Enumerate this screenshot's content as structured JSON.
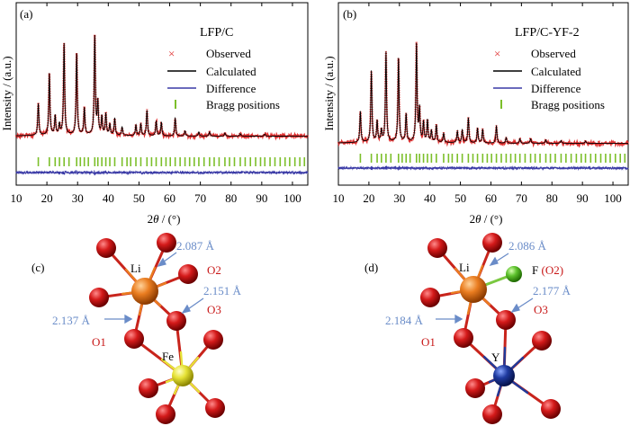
{
  "chart_data": [
    {
      "type": "line",
      "panel_label": "(a)",
      "title": "LFP/C",
      "xlabel_prefix": "2",
      "xlabel_theta": "θ",
      "xlabel_suffix": " / (°)",
      "ylabel": "Intensity / (a.u.)",
      "xlim": [
        10,
        105
      ],
      "xticks": [
        10,
        20,
        30,
        40,
        50,
        60,
        70,
        80,
        90,
        100
      ],
      "y_units": "arbitrary (normalized, background = 0)",
      "legend": [
        "Observed",
        "Calculated",
        "Difference",
        "Bragg positions"
      ],
      "peaks": [
        {
          "x": 17.2,
          "h": 0.3
        },
        {
          "x": 20.8,
          "h": 0.58
        },
        {
          "x": 22.7,
          "h": 0.18
        },
        {
          "x": 24.1,
          "h": 0.1
        },
        {
          "x": 25.6,
          "h": 0.86
        },
        {
          "x": 29.7,
          "h": 0.77
        },
        {
          "x": 32.2,
          "h": 0.25
        },
        {
          "x": 35.6,
          "h": 0.93
        },
        {
          "x": 36.6,
          "h": 0.3
        },
        {
          "x": 37.9,
          "h": 0.17
        },
        {
          "x": 39.2,
          "h": 0.2
        },
        {
          "x": 40.5,
          "h": 0.1
        },
        {
          "x": 42.1,
          "h": 0.16
        },
        {
          "x": 44.5,
          "h": 0.08
        },
        {
          "x": 49.0,
          "h": 0.1
        },
        {
          "x": 50.6,
          "h": 0.11
        },
        {
          "x": 52.6,
          "h": 0.24
        },
        {
          "x": 55.6,
          "h": 0.14
        },
        {
          "x": 57.3,
          "h": 0.13
        },
        {
          "x": 61.8,
          "h": 0.17
        },
        {
          "x": 65.0,
          "h": 0.05
        },
        {
          "x": 69.5,
          "h": 0.04
        },
        {
          "x": 73.0,
          "h": 0.04
        },
        {
          "x": 78.0,
          "h": 0.03
        },
        {
          "x": 83.0,
          "h": 0.025
        },
        {
          "x": 91.0,
          "h": 0.02
        }
      ],
      "bragg_positions": [
        17.2,
        20.8,
        22.7,
        24.1,
        25.6,
        27.2,
        29.7,
        30.9,
        32.2,
        33.5,
        35.6,
        36.6,
        37.9,
        39.2,
        40.5,
        42.1,
        44.5,
        46.1,
        47.3,
        49.0,
        50.6,
        52.6,
        54.1,
        55.6,
        57.3,
        58.8,
        60.2,
        61.8,
        63.4,
        65.0,
        66.5,
        68.0,
        69.5,
        71.2,
        73.0,
        74.5,
        76.1,
        78.0,
        79.5,
        81.1,
        83.0,
        84.6,
        86.3,
        88.0,
        89.6,
        91.0,
        92.7,
        94.3,
        96.0,
        97.6,
        99.1,
        100.8,
        102.4,
        103.9
      ]
    },
    {
      "type": "line",
      "panel_label": "(b)",
      "title": "LFP/C-YF-2",
      "xlabel_prefix": "2",
      "xlabel_theta": "θ",
      "xlabel_suffix": " / (°)",
      "ylabel": "Intensity / (a.u.)",
      "xlim": [
        10,
        105
      ],
      "xticks": [
        10,
        20,
        30,
        40,
        50,
        60,
        70,
        80,
        90,
        100
      ],
      "y_units": "arbitrary (normalized, background = 0)",
      "legend": [
        "Observed",
        "Calculated",
        "Difference",
        "Bragg positions"
      ],
      "peaks": [
        {
          "x": 17.2,
          "h": 0.27
        },
        {
          "x": 20.8,
          "h": 0.62
        },
        {
          "x": 22.7,
          "h": 0.18
        },
        {
          "x": 24.1,
          "h": 0.1
        },
        {
          "x": 25.6,
          "h": 0.78
        },
        {
          "x": 29.7,
          "h": 0.73
        },
        {
          "x": 32.2,
          "h": 0.24
        },
        {
          "x": 35.6,
          "h": 0.85
        },
        {
          "x": 36.6,
          "h": 0.28
        },
        {
          "x": 37.9,
          "h": 0.17
        },
        {
          "x": 39.2,
          "h": 0.19
        },
        {
          "x": 40.5,
          "h": 0.1
        },
        {
          "x": 42.1,
          "h": 0.15
        },
        {
          "x": 44.5,
          "h": 0.08
        },
        {
          "x": 49.0,
          "h": 0.1
        },
        {
          "x": 50.6,
          "h": 0.11
        },
        {
          "x": 52.6,
          "h": 0.22
        },
        {
          "x": 55.6,
          "h": 0.13
        },
        {
          "x": 57.3,
          "h": 0.12
        },
        {
          "x": 61.8,
          "h": 0.15
        },
        {
          "x": 65.0,
          "h": 0.05
        },
        {
          "x": 69.5,
          "h": 0.04
        },
        {
          "x": 73.0,
          "h": 0.04
        },
        {
          "x": 78.0,
          "h": 0.03
        },
        {
          "x": 83.0,
          "h": 0.025
        },
        {
          "x": 91.0,
          "h": 0.02
        }
      ],
      "bragg_positions": [
        17.2,
        20.8,
        22.7,
        24.1,
        25.6,
        27.2,
        29.7,
        30.9,
        32.2,
        33.5,
        35.6,
        36.6,
        37.9,
        39.2,
        40.5,
        42.1,
        44.5,
        46.1,
        47.3,
        49.0,
        50.6,
        52.6,
        54.1,
        55.6,
        57.3,
        58.8,
        60.2,
        61.8,
        63.4,
        65.0,
        66.5,
        68.0,
        69.5,
        71.2,
        73.0,
        74.5,
        76.1,
        78.0,
        79.5,
        81.1,
        83.0,
        84.6,
        86.3,
        88.0,
        89.6,
        91.0,
        92.7,
        94.3,
        96.0,
        97.6,
        99.1,
        100.8,
        102.4,
        103.9
      ]
    }
  ],
  "structures": {
    "c": {
      "panel_label": "(c)",
      "atoms": {
        "li": "Li",
        "fe": "Fe",
        "o1": "O1",
        "o2": "O2",
        "o3": "O3"
      },
      "bonds": {
        "d1": "2.087 Å",
        "d2": "2.151 Å",
        "d3": "2.137 Å"
      }
    },
    "d": {
      "panel_label": "(d)",
      "atoms": {
        "li": "Li",
        "y": "Y",
        "o1": "O1",
        "o3": "O3",
        "f": "F",
        "f_site": "(O2)"
      },
      "bonds": {
        "d1": "2.086 Å",
        "d2": "2.177 Å",
        "d3": "2.184 Å"
      }
    }
  },
  "colors": {
    "observed": "#e03030",
    "calculated": "#000000",
    "difference": "#3a3aa6",
    "bragg": "#7cbf2a",
    "oxygen": "#c81818",
    "lithium": "#e07a22",
    "iron": "#e4e23a",
    "yttrium": "#1f3a9a",
    "fluorine": "#5fc030",
    "distance_label": "#6a8cc8",
    "oxygen_label": "#c81818"
  }
}
